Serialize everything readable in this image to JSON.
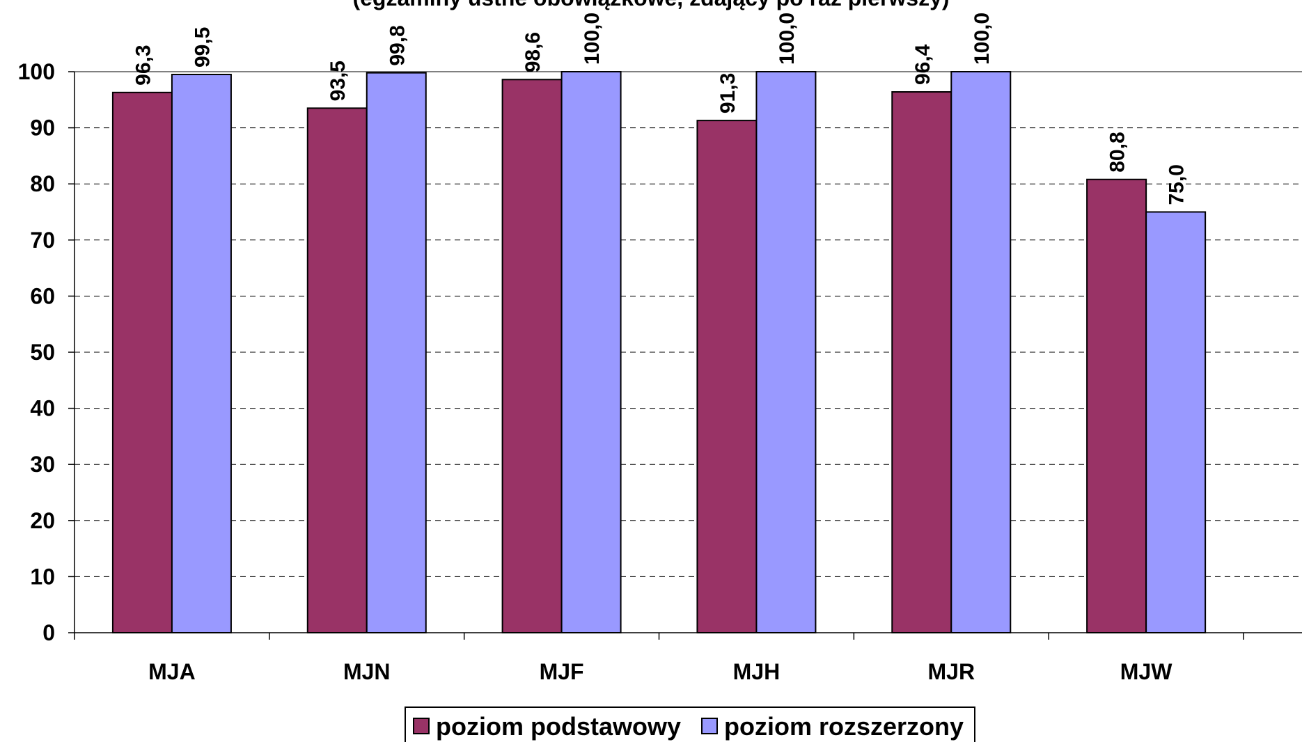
{
  "chart_data": {
    "type": "bar",
    "title": "(egzaminy ustne obowiązkowe, zdający po raz pierwszy)",
    "categories": [
      "MJA",
      "MJN",
      "MJF",
      "MJH",
      "MJR",
      "MJW"
    ],
    "series": [
      {
        "name": "poziom podstawowy",
        "color": "#993366",
        "values": [
          96.3,
          93.5,
          98.6,
          91.3,
          96.4,
          80.8
        ],
        "labels": [
          "96,3",
          "93,5",
          "98,6",
          "91,3",
          "96,4",
          "80,8"
        ]
      },
      {
        "name": "poziom rozszerzony",
        "color": "#9999ff",
        "values": [
          99.5,
          99.8,
          100.0,
          100.0,
          100.0,
          75.0
        ],
        "labels": [
          "99,5",
          "99,8",
          "100,0",
          "100,0",
          "100,0",
          "75,0"
        ]
      }
    ],
    "ylim": [
      0,
      100
    ],
    "yticks": [
      "0",
      "10",
      "20",
      "30",
      "40",
      "50",
      "60",
      "70",
      "80",
      "90",
      "100"
    ],
    "grid": true,
    "legend_position": "bottom"
  }
}
